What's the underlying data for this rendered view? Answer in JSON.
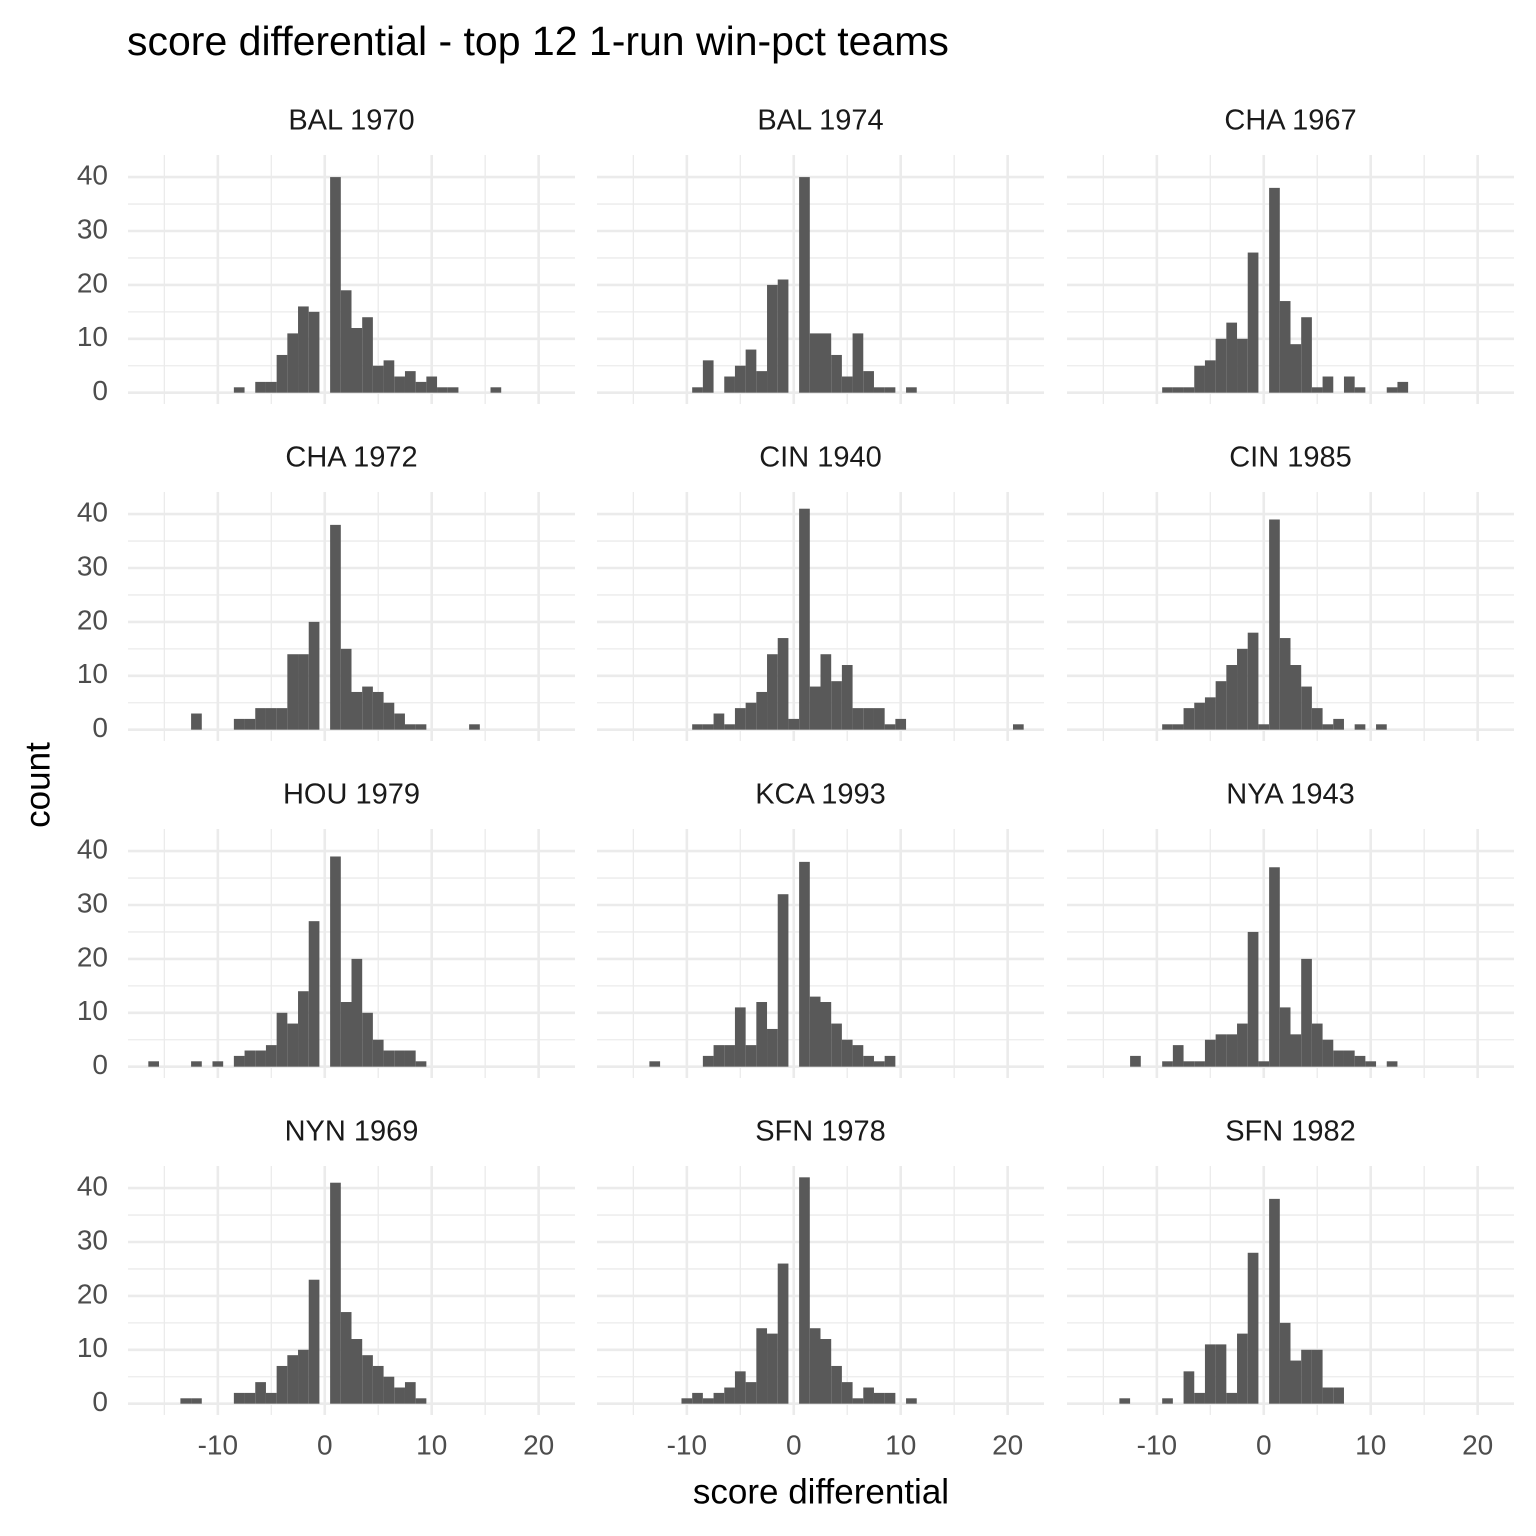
{
  "chart_data": {
    "type": "histogram",
    "title": "score differential - top 12 1-run win-pct teams",
    "xlabel": "score differential",
    "ylabel": "count",
    "color": "#595959",
    "grid": true,
    "bins": [
      -16.5,
      -15.5,
      -14.5,
      -13.5,
      -12.5,
      -11.5,
      -10.5,
      -9.5,
      -8.5,
      -7.5,
      -6.5,
      -5.5,
      -4.5,
      -3.5,
      -2.5,
      -1.5,
      -0.5,
      0.5,
      1.5,
      2.5,
      3.5,
      4.5,
      5.5,
      6.5,
      7.5,
      8.5,
      9.5,
      10.5,
      11.5,
      12.5,
      13.5,
      14.5,
      15.5,
      16.5,
      17.5,
      18.5,
      19.5,
      20.5,
      21.5
    ],
    "xlim": [
      -18.4,
      23.4
    ],
    "ylim": [
      -2.1,
      44.1
    ],
    "xticks": [
      -10,
      0,
      10,
      20
    ],
    "yticks": [
      0,
      10,
      20,
      30,
      40
    ],
    "xminor": [
      -15,
      -5,
      5,
      15
    ],
    "yminor": [
      5,
      15,
      25,
      35
    ],
    "series": [
      {
        "name": "BAL 1970",
        "values": [
          0,
          0,
          0,
          0,
          0,
          0,
          0,
          0,
          1,
          0,
          2,
          2,
          7,
          11,
          16,
          15,
          0,
          40,
          19,
          12,
          14,
          5,
          6,
          3,
          4,
          2,
          3,
          1,
          1,
          0,
          0,
          0,
          1,
          0,
          0,
          0,
          0,
          0
        ]
      },
      {
        "name": "BAL 1974",
        "values": [
          0,
          0,
          0,
          0,
          0,
          0,
          0,
          1,
          6,
          0,
          3,
          5,
          8,
          4,
          20,
          21,
          0,
          40,
          11,
          11,
          7,
          3,
          11,
          4,
          1,
          1,
          0,
          1,
          0,
          0,
          0,
          0,
          0,
          0,
          0,
          0,
          0,
          0
        ]
      },
      {
        "name": "CHA 1967",
        "values": [
          0,
          0,
          0,
          0,
          0,
          0,
          0,
          1,
          1,
          1,
          5,
          6,
          10,
          13,
          10,
          26,
          0,
          38,
          17,
          9,
          14,
          1,
          3,
          0,
          3,
          1,
          0,
          0,
          1,
          2,
          0,
          0,
          0,
          0,
          0,
          0,
          0,
          0
        ]
      },
      {
        "name": "CHA 1972",
        "values": [
          0,
          0,
          0,
          0,
          3,
          0,
          0,
          0,
          2,
          2,
          4,
          4,
          4,
          14,
          14,
          20,
          0,
          38,
          15,
          7,
          8,
          7,
          5,
          3,
          1,
          1,
          0,
          0,
          0,
          0,
          1,
          0,
          0,
          0,
          0,
          0,
          0,
          0
        ]
      },
      {
        "name": "CIN 1940",
        "values": [
          0,
          0,
          0,
          0,
          0,
          0,
          0,
          1,
          1,
          3,
          1,
          4,
          5,
          7,
          14,
          17,
          2,
          41,
          8,
          14,
          9,
          12,
          4,
          4,
          4,
          1,
          2,
          0,
          0,
          0,
          0,
          0,
          0,
          0,
          0,
          0,
          0,
          1
        ]
      },
      {
        "name": "CIN 1985",
        "values": [
          0,
          0,
          0,
          0,
          0,
          0,
          0,
          1,
          1,
          4,
          5,
          6,
          9,
          12,
          15,
          18,
          1,
          39,
          17,
          12,
          8,
          4,
          1,
          2,
          0,
          1,
          0,
          1,
          0,
          0,
          0,
          0,
          0,
          0,
          0,
          0,
          0,
          0
        ]
      },
      {
        "name": "HOU 1979",
        "values": [
          1,
          0,
          0,
          0,
          1,
          0,
          1,
          0,
          2,
          3,
          3,
          4,
          10,
          8,
          14,
          27,
          0,
          39,
          12,
          20,
          10,
          5,
          3,
          3,
          3,
          1,
          0,
          0,
          0,
          0,
          0,
          0,
          0,
          0,
          0,
          0,
          0,
          0
        ]
      },
      {
        "name": "KCA 1993",
        "values": [
          0,
          0,
          0,
          1,
          0,
          0,
          0,
          0,
          2,
          4,
          4,
          11,
          4,
          12,
          7,
          32,
          0,
          38,
          13,
          12,
          8,
          5,
          4,
          2,
          1,
          2,
          0,
          0,
          0,
          0,
          0,
          0,
          0,
          0,
          0,
          0,
          0,
          0
        ]
      },
      {
        "name": "NYA 1943",
        "values": [
          0,
          0,
          0,
          0,
          2,
          0,
          0,
          1,
          4,
          1,
          1,
          5,
          6,
          6,
          8,
          25,
          1,
          37,
          11,
          6,
          20,
          8,
          5,
          3,
          3,
          2,
          1,
          0,
          1,
          0,
          0,
          0,
          0,
          0,
          0,
          0,
          0,
          0
        ]
      },
      {
        "name": "NYN 1969",
        "values": [
          0,
          0,
          0,
          1,
          1,
          0,
          0,
          0,
          2,
          2,
          4,
          2,
          7,
          9,
          10,
          23,
          0,
          41,
          17,
          12,
          9,
          7,
          5,
          3,
          4,
          1,
          0,
          0,
          0,
          0,
          0,
          0,
          0,
          0,
          0,
          0,
          0,
          0
        ]
      },
      {
        "name": "SFN 1978",
        "values": [
          0,
          0,
          0,
          0,
          0,
          0,
          1,
          2,
          1,
          2,
          3,
          6,
          4,
          14,
          13,
          26,
          0,
          42,
          14,
          12,
          7,
          4,
          1,
          3,
          2,
          2,
          0,
          1,
          0,
          0,
          0,
          0,
          0,
          0,
          0,
          0,
          0,
          0
        ]
      },
      {
        "name": "SFN 1982",
        "values": [
          0,
          0,
          0,
          1,
          0,
          0,
          0,
          1,
          0,
          6,
          2,
          11,
          11,
          2,
          13,
          28,
          0,
          38,
          15,
          8,
          10,
          10,
          3,
          3,
          0,
          0,
          0,
          0,
          0,
          0,
          0,
          0,
          0,
          0,
          0,
          0,
          0,
          0
        ]
      }
    ]
  }
}
